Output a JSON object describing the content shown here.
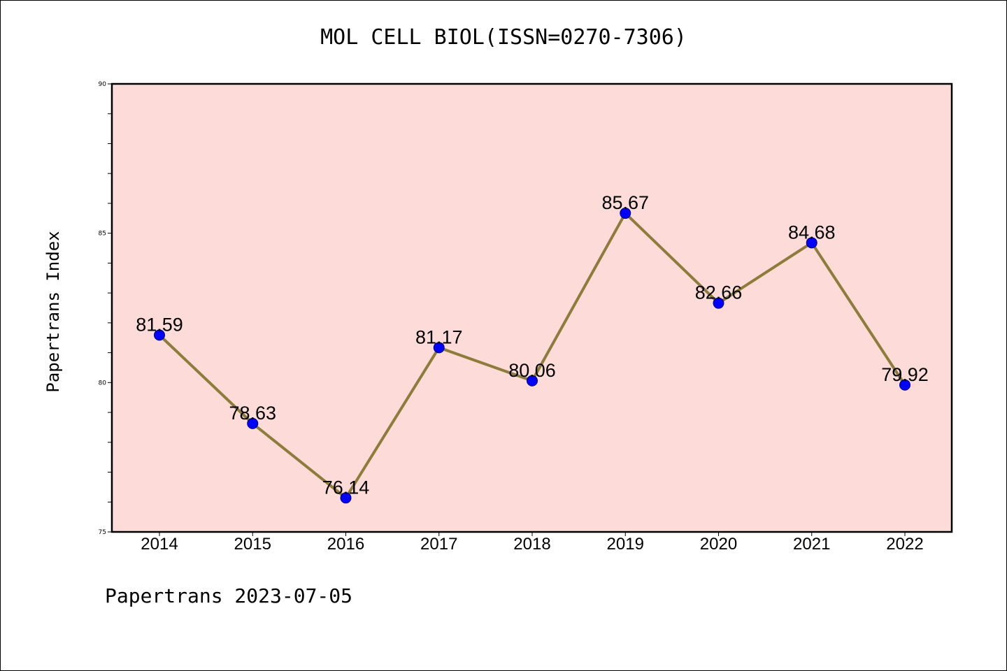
{
  "title": "MOL CELL BIOL(ISSN=0270-7306)",
  "footer": "Papertrans 2023-07-05",
  "chart_data": {
    "type": "line",
    "title": "MOL CELL BIOL(ISSN=0270-7306)",
    "xlabel": "",
    "ylabel": "Papertrans Index",
    "categories": [
      "2014",
      "2015",
      "2016",
      "2017",
      "2018",
      "2019",
      "2020",
      "2021",
      "2022"
    ],
    "series": [
      {
        "values": [
          81.59,
          78.63,
          76.14,
          81.17,
          80.06,
          85.67,
          82.66,
          84.68,
          79.92
        ],
        "labels": [
          "81.59",
          "78.63",
          "76.14",
          "81.17",
          "80.06",
          "85.67",
          "82.66",
          "84.68",
          "79.92"
        ]
      }
    ],
    "ylim": [
      75,
      90
    ],
    "yticks": [
      75,
      80,
      85,
      90
    ],
    "grid": false,
    "colors": {
      "plot_background": "#fddbd9",
      "line": "#8e7c3a",
      "marker": "#0000ff"
    }
  }
}
